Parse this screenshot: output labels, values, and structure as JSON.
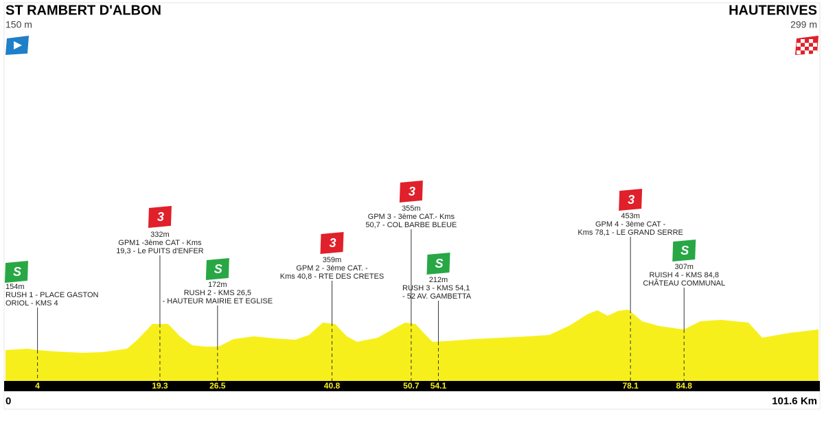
{
  "header": {
    "start": {
      "name": "ST RAMBERT D'ALBON",
      "altitude": "150 m"
    },
    "finish": {
      "name": "HAUTERIVES",
      "altitude": "299 m"
    }
  },
  "axis": {
    "start": "0",
    "end": "101.6",
    "unit": "Km"
  },
  "markers": [
    {
      "km": "4",
      "badge": "S",
      "altitude": "154m",
      "lines": [
        "RUSH 1 - PLACE GASTON",
        "ORIOL - KMS 4"
      ]
    },
    {
      "km": "19.3",
      "badge": "3",
      "altitude": "332m",
      "lines": [
        "GPM1 -3ème CAT - Kms",
        "19,3 - Le PUITS d'ENFER"
      ]
    },
    {
      "km": "26.5",
      "badge": "S",
      "altitude": "172m",
      "lines": [
        "RUSH 2 - KMS 26,5",
        "- HAUTEUR MAIRIE ET EGLISE"
      ]
    },
    {
      "km": "40.8",
      "badge": "3",
      "altitude": "359m",
      "lines": [
        "GPM 2 - 3ème CAT. -",
        "Kms 40,8 - RTE DES CRETES"
      ]
    },
    {
      "km": "50.7",
      "badge": "3",
      "altitude": "355m",
      "lines": [
        "GPM 3 - 3ème CAT.- Kms",
        "50,7 - COL BARBE BLEUE"
      ]
    },
    {
      "km": "54.1",
      "badge": "S",
      "altitude": "212m",
      "lines": [
        "RUSH 3 - KMS 54,1",
        "- 52 AV. GAMBETTA"
      ]
    },
    {
      "km": "78.1",
      "badge": "3",
      "altitude": "453m",
      "lines": [
        "GPM 4 - 3ème CAT -",
        "Kms 78,1 - LE GRAND SERRE"
      ]
    },
    {
      "km": "84.8",
      "badge": "S",
      "altitude": "307m",
      "lines": [
        "RUISH 4 - KMS 84,8",
        "CHÂTEAU COMMUNAL"
      ]
    }
  ]
}
